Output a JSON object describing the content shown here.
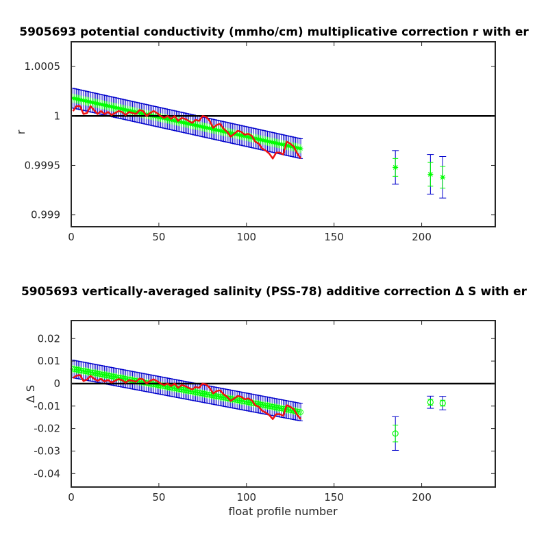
{
  "chart_data": [
    {
      "type": "line",
      "title": "5905693 potential conductivity (mmho/cm) multiplicative correction r with er",
      "xlabel": "",
      "ylabel": "r",
      "xlim": [
        0,
        242
      ],
      "ylim": [
        0.99888,
        1.00075
      ],
      "xticks": [
        0,
        50,
        100,
        150,
        200
      ],
      "xtick_labels": [
        "0",
        "50",
        "100",
        "150",
        "200"
      ],
      "yticks": [
        0.999,
        0.9995,
        1,
        1.0005
      ],
      "ytick_labels": [
        "0.999",
        "0.9995",
        "1",
        "1.0005"
      ],
      "reference_line": 1,
      "grid": false,
      "colors": {
        "fit": "#00ff00",
        "error_bars": "#0000cc",
        "measured": "#ee1111",
        "reference": "#000000"
      },
      "fit_line": {
        "start": [
          1,
          1.00018
        ],
        "end": [
          131,
          0.99967
        ],
        "error": 0.0001
      },
      "isolated_points": [
        {
          "x": 185,
          "y": 0.99948,
          "err_inner": 9e-05,
          "err_outer": 0.00017,
          "marker": "*"
        },
        {
          "x": 205,
          "y": 0.99941,
          "err_inner": 0.00012,
          "err_outer": 0.0002,
          "marker": "*"
        },
        {
          "x": 212,
          "y": 0.99938,
          "err_inner": 0.00011,
          "err_outer": 0.00021,
          "marker": "*"
        }
      ],
      "measured_series": {
        "x": [
          1,
          3,
          5,
          7,
          9,
          11,
          13,
          15,
          17,
          19,
          21,
          23,
          25,
          27,
          29,
          31,
          33,
          35,
          37,
          39,
          41,
          43,
          45,
          47,
          49,
          51,
          53,
          55,
          57,
          59,
          61,
          63,
          65,
          67,
          69,
          71,
          73,
          75,
          77,
          79,
          81,
          83,
          85,
          87,
          89,
          91,
          93,
          95,
          97,
          99,
          101,
          103,
          105,
          107,
          109,
          111,
          113,
          115,
          117,
          119,
          121,
          123,
          125,
          127,
          129,
          131
        ],
        "y": [
          1.00005,
          1.0001,
          1.0001,
          1.00002,
          1.00003,
          1.0001,
          1.00006,
          1.00002,
          1.00005,
          1.00002,
          1.00004,
          1.00001,
          1.00003,
          1.00005,
          1.00004,
          1.00001,
          1.00004,
          1.00003,
          1.00002,
          1.00006,
          1.00005,
          1.0,
          1.00003,
          1.00005,
          1.00003,
          1.0,
          0.99998,
          1.0,
          0.99997,
          1.0,
          0.99995,
          0.99998,
          0.99997,
          0.99995,
          0.99993,
          0.99996,
          0.99995,
          1.0,
          0.99999,
          0.99995,
          0.99988,
          0.99991,
          0.99992,
          0.99987,
          0.99984,
          0.99979,
          0.99982,
          0.99985,
          0.99984,
          0.99981,
          0.99982,
          0.9998,
          0.99974,
          0.99972,
          0.99967,
          0.99965,
          0.99962,
          0.99957,
          0.99963,
          0.99963,
          0.99961,
          0.99974,
          0.99972,
          0.99969,
          0.99962,
          0.99957
        ]
      }
    },
    {
      "type": "line",
      "title": "5905693 vertically-averaged salinity (PSS-78) additive correction Δ S with er",
      "xlabel": "float profile number",
      "ylabel": "Δ S",
      "xlim": [
        0,
        242
      ],
      "ylim": [
        -0.046,
        0.028
      ],
      "xticks": [
        0,
        50,
        100,
        150,
        200
      ],
      "xtick_labels": [
        "0",
        "50",
        "100",
        "150",
        "200"
      ],
      "yticks": [
        -0.04,
        -0.03,
        -0.02,
        -0.01,
        0,
        0.01,
        0.02
      ],
      "ytick_labels": [
        "-0.04",
        "-0.03",
        "-0.02",
        "-0.01",
        "0",
        "0.01",
        "0.02"
      ],
      "reference_line": 0,
      "grid": false,
      "colors": {
        "fit": "#00ff00",
        "error_bars": "#0000cc",
        "measured": "#ee1111",
        "reference": "#000000"
      },
      "fit_line": {
        "start": [
          1,
          0.0065
        ],
        "end": [
          131,
          -0.0127
        ],
        "error": 0.0039
      },
      "isolated_points": [
        {
          "x": 185,
          "y": -0.0222,
          "err_inner": 0.0037,
          "err_outer": 0.0075,
          "marker": "o"
        },
        {
          "x": 205,
          "y": -0.0083,
          "err_inner": 0.0013,
          "err_outer": 0.0027,
          "marker": "o"
        },
        {
          "x": 212,
          "y": -0.0087,
          "err_inner": 0.0013,
          "err_outer": 0.003,
          "marker": "o"
        }
      ],
      "measured_series": {
        "x": [
          1,
          3,
          5,
          7,
          9,
          11,
          13,
          15,
          17,
          19,
          21,
          23,
          25,
          27,
          29,
          31,
          33,
          35,
          37,
          39,
          41,
          43,
          45,
          47,
          49,
          51,
          53,
          55,
          57,
          59,
          61,
          63,
          65,
          67,
          69,
          71,
          73,
          75,
          77,
          79,
          81,
          83,
          85,
          87,
          89,
          91,
          93,
          95,
          97,
          99,
          101,
          103,
          105,
          107,
          109,
          111,
          113,
          115,
          117,
          119,
          121,
          123,
          125,
          127,
          129,
          131
        ],
        "y": [
          0.0025,
          0.0035,
          0.0038,
          0.0011,
          0.0018,
          0.0034,
          0.0022,
          0.0012,
          0.0021,
          0.0009,
          0.0016,
          0.0005,
          0.0012,
          0.002,
          0.0015,
          0.0004,
          0.0015,
          0.0012,
          0.0008,
          0.0022,
          0.0019,
          0.0,
          0.0012,
          0.0019,
          0.0011,
          0.0,
          -0.0007,
          0.0,
          -0.0011,
          0.0,
          -0.0019,
          -0.0007,
          -0.0011,
          -0.0019,
          -0.0026,
          -0.0015,
          -0.0019,
          0.0,
          -0.0004,
          -0.0019,
          -0.0044,
          -0.0033,
          -0.003,
          -0.0048,
          -0.0059,
          -0.0077,
          -0.0066,
          -0.0055,
          -0.0059,
          -0.007,
          -0.0066,
          -0.0074,
          -0.0096,
          -0.0103,
          -0.0121,
          -0.0129,
          -0.014,
          -0.0158,
          -0.0136,
          -0.0136,
          -0.0143,
          -0.0096,
          -0.0103,
          -0.0114,
          -0.014,
          -0.0158
        ]
      }
    }
  ]
}
